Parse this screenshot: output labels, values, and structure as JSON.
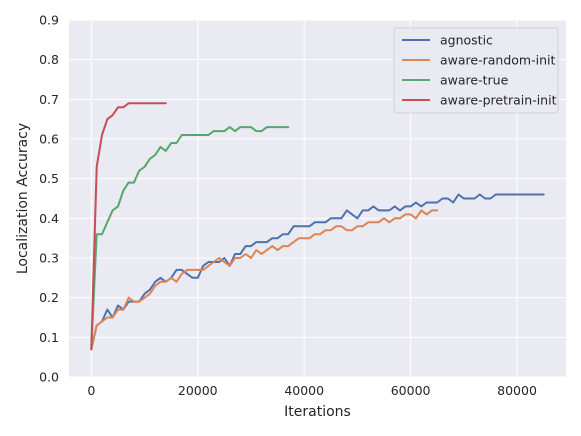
{
  "chart_data": {
    "type": "line",
    "title": "",
    "xlabel": "Iterations",
    "ylabel": "Localization Accuracy",
    "xlim": [
      -4200,
      89200
    ],
    "ylim": [
      0.0,
      0.9
    ],
    "xticks": [
      0,
      20000,
      40000,
      60000,
      80000
    ],
    "xtick_labels": [
      "0",
      "20000",
      "40000",
      "60000",
      "80000"
    ],
    "yticks": [
      0.0,
      0.1,
      0.2,
      0.3,
      0.4,
      0.5,
      0.6,
      0.7,
      0.8,
      0.9
    ],
    "ytick_labels": [
      "0.0",
      "0.1",
      "0.2",
      "0.3",
      "0.4",
      "0.5",
      "0.6",
      "0.7",
      "0.8",
      "0.9"
    ],
    "grid": true,
    "background": "#eaeaf2",
    "legend_position": "top-right",
    "series": [
      {
        "name": "agnostic",
        "color": "#4c72b0",
        "x": [
          0,
          1000,
          2000,
          3000,
          4000,
          5000,
          6000,
          7000,
          8000,
          9000,
          10000,
          11000,
          12000,
          13000,
          14000,
          15000,
          16000,
          17000,
          18000,
          19000,
          20000,
          21000,
          22000,
          23000,
          24000,
          25000,
          26000,
          27000,
          28000,
          29000,
          30000,
          31000,
          32000,
          33000,
          34000,
          35000,
          36000,
          37000,
          38000,
          39000,
          40000,
          41000,
          42000,
          43000,
          44000,
          45000,
          46000,
          47000,
          48000,
          49000,
          50000,
          51000,
          52000,
          53000,
          54000,
          55000,
          56000,
          57000,
          58000,
          59000,
          60000,
          61000,
          62000,
          63000,
          64000,
          65000,
          66000,
          67000,
          68000,
          69000,
          70000,
          71000,
          72000,
          73000,
          74000,
          75000,
          76000,
          77000,
          78000,
          79000,
          80000,
          81000,
          82000,
          83000,
          84000,
          85000
        ],
        "values": [
          0.07,
          0.13,
          0.14,
          0.17,
          0.15,
          0.18,
          0.17,
          0.19,
          0.19,
          0.19,
          0.21,
          0.22,
          0.24,
          0.25,
          0.24,
          0.25,
          0.27,
          0.27,
          0.26,
          0.25,
          0.25,
          0.28,
          0.29,
          0.29,
          0.29,
          0.3,
          0.28,
          0.31,
          0.31,
          0.33,
          0.33,
          0.34,
          0.34,
          0.34,
          0.35,
          0.35,
          0.36,
          0.36,
          0.38,
          0.38,
          0.38,
          0.38,
          0.39,
          0.39,
          0.39,
          0.4,
          0.4,
          0.4,
          0.42,
          0.41,
          0.4,
          0.42,
          0.42,
          0.43,
          0.42,
          0.42,
          0.42,
          0.43,
          0.42,
          0.43,
          0.43,
          0.44,
          0.43,
          0.44,
          0.44,
          0.44,
          0.45,
          0.45,
          0.44,
          0.46,
          0.45,
          0.45,
          0.45,
          0.46,
          0.45,
          0.45,
          0.46,
          0.46,
          0.46,
          0.46,
          0.46,
          0.46,
          0.46,
          0.46,
          0.46,
          0.46
        ]
      },
      {
        "name": "aware-random-init",
        "color": "#dd8452",
        "x": [
          0,
          1000,
          2000,
          3000,
          4000,
          5000,
          6000,
          7000,
          8000,
          9000,
          10000,
          11000,
          12000,
          13000,
          14000,
          15000,
          16000,
          17000,
          18000,
          19000,
          20000,
          21000,
          22000,
          23000,
          24000,
          25000,
          26000,
          27000,
          28000,
          29000,
          30000,
          31000,
          32000,
          33000,
          34000,
          35000,
          36000,
          37000,
          38000,
          39000,
          40000,
          41000,
          42000,
          43000,
          44000,
          45000,
          46000,
          47000,
          48000,
          49000,
          50000,
          51000,
          52000,
          53000,
          54000,
          55000,
          56000,
          57000,
          58000,
          59000,
          60000,
          61000,
          62000,
          63000,
          64000,
          65000
        ],
        "values": [
          0.07,
          0.13,
          0.14,
          0.15,
          0.15,
          0.17,
          0.17,
          0.2,
          0.19,
          0.19,
          0.2,
          0.21,
          0.23,
          0.24,
          0.24,
          0.25,
          0.24,
          0.26,
          0.27,
          0.27,
          0.27,
          0.27,
          0.28,
          0.29,
          0.3,
          0.29,
          0.28,
          0.3,
          0.3,
          0.31,
          0.3,
          0.32,
          0.31,
          0.32,
          0.33,
          0.32,
          0.33,
          0.33,
          0.34,
          0.35,
          0.35,
          0.35,
          0.36,
          0.36,
          0.37,
          0.37,
          0.38,
          0.38,
          0.37,
          0.37,
          0.38,
          0.38,
          0.39,
          0.39,
          0.39,
          0.4,
          0.39,
          0.4,
          0.4,
          0.41,
          0.41,
          0.4,
          0.42,
          0.41,
          0.42,
          0.42
        ]
      },
      {
        "name": "aware-true",
        "color": "#55a868",
        "x": [
          0,
          1000,
          2000,
          3000,
          4000,
          5000,
          6000,
          7000,
          8000,
          9000,
          10000,
          11000,
          12000,
          13000,
          14000,
          15000,
          16000,
          17000,
          18000,
          19000,
          20000,
          21000,
          22000,
          23000,
          24000,
          25000,
          26000,
          27000,
          28000,
          29000,
          30000,
          31000,
          32000,
          33000,
          34000,
          35000,
          36000,
          37000
        ],
        "values": [
          0.07,
          0.36,
          0.36,
          0.39,
          0.42,
          0.43,
          0.47,
          0.49,
          0.49,
          0.52,
          0.53,
          0.55,
          0.56,
          0.58,
          0.57,
          0.59,
          0.59,
          0.61,
          0.61,
          0.61,
          0.61,
          0.61,
          0.61,
          0.62,
          0.62,
          0.62,
          0.63,
          0.62,
          0.63,
          0.63,
          0.63,
          0.62,
          0.62,
          0.63,
          0.63,
          0.63,
          0.63,
          0.63
        ]
      },
      {
        "name": "aware-pretrain-init",
        "color": "#c44e52",
        "x": [
          0,
          1000,
          2000,
          3000,
          4000,
          5000,
          6000,
          7000,
          8000,
          9000,
          10000,
          11000,
          12000,
          13000,
          14000
        ],
        "values": [
          0.07,
          0.53,
          0.61,
          0.65,
          0.66,
          0.68,
          0.68,
          0.69,
          0.69,
          0.69,
          0.69,
          0.69,
          0.69,
          0.69,
          0.69
        ]
      }
    ]
  }
}
